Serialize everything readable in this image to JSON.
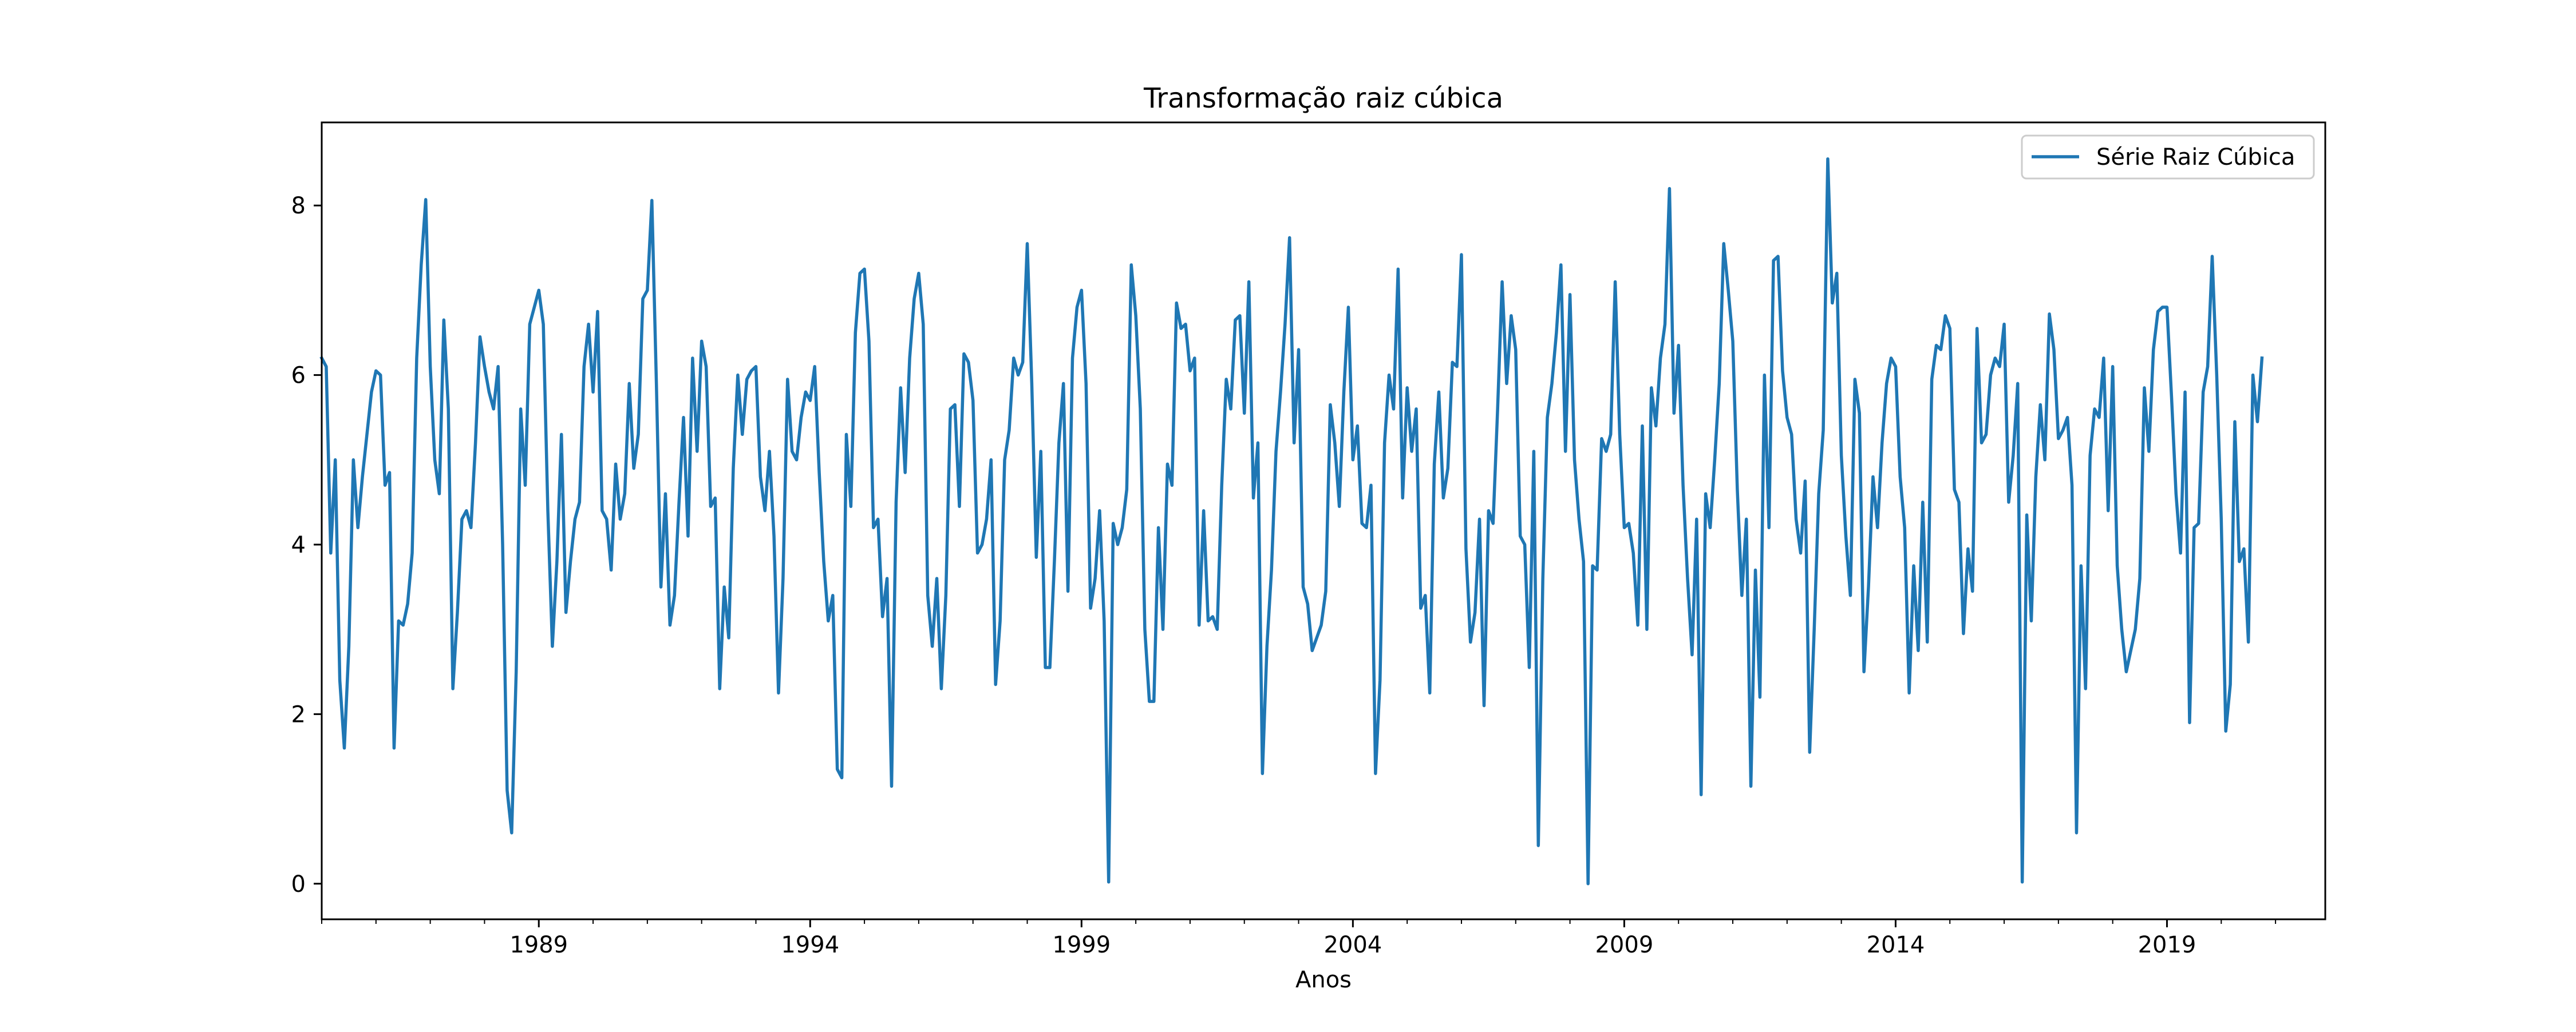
{
  "chart_data": {
    "type": "line",
    "title": "Transformação raiz cúbica",
    "xlabel": "Anos",
    "ylabel": "",
    "x_unit": "monthly",
    "x_start": "1985-01",
    "x_end": "2021-12",
    "xlim": [
      "1985-01",
      "2021-12"
    ],
    "ylim": [
      -0.42,
      8.98
    ],
    "x_ticks": [
      "1989",
      "1994",
      "1999",
      "2004",
      "2009",
      "2014",
      "2019"
    ],
    "y_ticks": [
      "0",
      "2",
      "4",
      "6",
      "8"
    ],
    "grid": false,
    "legend_position": "top-right",
    "color": "#1f77b4",
    "series": [
      {
        "name": "Série Raiz Cúbica",
        "color": "#1f77b4",
        "values": [
          6.2,
          6.1,
          3.9,
          5.0,
          2.4,
          1.6,
          2.8,
          5.0,
          4.2,
          4.8,
          5.3,
          5.8,
          6.05,
          6.0,
          4.7,
          4.85,
          1.6,
          3.1,
          3.05,
          3.3,
          3.9,
          6.2,
          7.3,
          8.07,
          6.1,
          5.0,
          4.6,
          6.65,
          5.6,
          2.3,
          3.2,
          4.3,
          4.4,
          4.2,
          5.2,
          6.45,
          6.1,
          5.8,
          5.6,
          6.1,
          4.0,
          1.1,
          0.6,
          2.5,
          5.6,
          4.7,
          6.6,
          6.8,
          7.0,
          6.6,
          4.4,
          2.8,
          3.8,
          5.3,
          3.2,
          3.8,
          4.3,
          4.5,
          6.1,
          6.6,
          5.8,
          6.75,
          4.4,
          4.3,
          3.7,
          4.95,
          4.3,
          4.6,
          5.9,
          4.9,
          5.3,
          6.9,
          7.0,
          8.06,
          5.9,
          3.5,
          4.6,
          3.05,
          3.4,
          4.5,
          5.5,
          4.1,
          6.2,
          5.1,
          6.4,
          6.1,
          4.45,
          4.55,
          2.3,
          3.5,
          2.9,
          4.9,
          6.0,
          5.3,
          5.95,
          6.05,
          6.1,
          4.8,
          4.4,
          5.1,
          4.1,
          2.25,
          3.6,
          5.95,
          5.1,
          5.0,
          5.5,
          5.8,
          5.7,
          6.1,
          4.85,
          3.8,
          3.1,
          3.4,
          1.35,
          1.25,
          5.3,
          4.45,
          6.5,
          7.2,
          7.25,
          6.4,
          4.2,
          4.3,
          3.15,
          3.6,
          1.15,
          4.5,
          5.85,
          4.85,
          6.2,
          6.9,
          7.2,
          6.6,
          3.4,
          2.8,
          3.6,
          2.3,
          3.4,
          5.6,
          5.65,
          4.45,
          6.25,
          6.15,
          5.7,
          3.9,
          4.0,
          4.3,
          5.0,
          2.35,
          3.1,
          5.0,
          5.35,
          6.2,
          6.0,
          6.15,
          7.55,
          5.9,
          3.85,
          5.1,
          2.55,
          2.55,
          3.8,
          5.2,
          5.9,
          3.45,
          6.2,
          6.8,
          7.0,
          5.9,
          3.25,
          3.6,
          4.4,
          3.1,
          0.02,
          4.25,
          4.0,
          4.2,
          4.65,
          7.3,
          6.7,
          5.6,
          3.0,
          2.15,
          2.15,
          4.2,
          3.0,
          4.95,
          4.7,
          6.85,
          6.55,
          6.6,
          6.05,
          6.2,
          3.05,
          4.4,
          3.1,
          3.15,
          3.0,
          4.7,
          5.95,
          5.6,
          6.65,
          6.7,
          5.55,
          7.1,
          4.55,
          5.2,
          1.3,
          2.8,
          3.7,
          5.1,
          5.8,
          6.6,
          7.62,
          5.2,
          6.3,
          3.5,
          3.3,
          2.75,
          2.9,
          3.05,
          3.45,
          5.65,
          5.2,
          4.45,
          5.8,
          6.8,
          5.0,
          5.4,
          4.25,
          4.2,
          4.7,
          1.3,
          2.4,
          5.2,
          6.0,
          5.6,
          7.25,
          4.55,
          5.85,
          5.1,
          5.6,
          3.25,
          3.4,
          2.25,
          4.95,
          5.8,
          4.55,
          4.9,
          6.15,
          6.1,
          7.42,
          3.95,
          2.85,
          3.2,
          4.3,
          2.1,
          4.4,
          4.25,
          5.6,
          7.1,
          5.9,
          6.7,
          6.3,
          4.1,
          4.0,
          2.55,
          5.1,
          0.45,
          3.6,
          5.5,
          5.9,
          6.5,
          7.3,
          5.1,
          6.95,
          5.0,
          4.3,
          3.8,
          0.0,
          3.75,
          3.7,
          5.25,
          5.1,
          5.3,
          7.1,
          5.3,
          4.2,
          4.25,
          3.9,
          3.05,
          5.4,
          3.0,
          5.85,
          5.4,
          6.2,
          6.6,
          8.2,
          5.55,
          6.35,
          4.7,
          3.6,
          2.7,
          4.3,
          1.05,
          4.6,
          4.2,
          5.0,
          5.9,
          7.55,
          7.0,
          6.4,
          4.65,
          3.4,
          4.3,
          1.15,
          3.7,
          2.2,
          6.0,
          4.2,
          7.35,
          7.4,
          6.05,
          5.5,
          5.3,
          4.3,
          3.9,
          4.75,
          1.55,
          3.0,
          4.6,
          5.35,
          8.55,
          6.85,
          7.2,
          5.05,
          4.1,
          3.4,
          5.95,
          5.55,
          2.5,
          3.5,
          4.8,
          4.2,
          5.2,
          5.9,
          6.2,
          6.1,
          4.8,
          4.2,
          2.25,
          3.75,
          2.75,
          4.5,
          2.85,
          5.95,
          6.35,
          6.3,
          6.7,
          6.55,
          4.65,
          4.5,
          2.95,
          3.95,
          3.45,
          6.55,
          5.2,
          5.3,
          6.0,
          6.2,
          6.1,
          6.6,
          4.5,
          5.05,
          5.9,
          0.02,
          4.35,
          3.1,
          4.8,
          5.65,
          5.0,
          6.72,
          6.3,
          5.25,
          5.35,
          5.5,
          4.7,
          0.6,
          3.75,
          2.3,
          5.05,
          5.6,
          5.5,
          6.2,
          4.4,
          6.1,
          3.75,
          3.0,
          2.5,
          2.75,
          3.0,
          3.6,
          5.85,
          5.1,
          6.3,
          6.75,
          6.8,
          6.8,
          5.75,
          4.6,
          3.9,
          5.8,
          1.9,
          4.2,
          4.25,
          5.8,
          6.1,
          7.4,
          6.0,
          4.3,
          1.8,
          2.35,
          5.45,
          3.8,
          3.95,
          2.85,
          6.0,
          5.45,
          6.2
        ]
      }
    ]
  }
}
